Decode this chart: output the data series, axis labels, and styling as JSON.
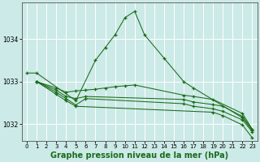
{
  "background_color": "#cceae7",
  "grid_color": "#ffffff",
  "line_color": "#1a6b1a",
  "title": "Graphe pression niveau de la mer (hPa)",
  "title_fontsize": 7,
  "title_fontweight": "bold",
  "xlim": [
    -0.5,
    23.5
  ],
  "ylim": [
    1031.6,
    1034.85
  ],
  "yticks": [
    1032,
    1033,
    1034
  ],
  "xticks": [
    0,
    1,
    2,
    3,
    4,
    5,
    6,
    7,
    8,
    9,
    10,
    11,
    12,
    13,
    14,
    15,
    16,
    17,
    18,
    19,
    20,
    21,
    22,
    23
  ],
  "series": [
    {
      "x": [
        0,
        1,
        5,
        7,
        8,
        9,
        10,
        11,
        12,
        14,
        16,
        17,
        22,
        23
      ],
      "y": [
        1033.2,
        1033.2,
        1032.55,
        1033.5,
        1033.8,
        1034.1,
        1034.5,
        1034.65,
        1034.1,
        1033.55,
        1033.0,
        1032.85,
        1032.15,
        1031.85
      ]
    },
    {
      "x": [
        1,
        3,
        4,
        5,
        6,
        7,
        8,
        9,
        10,
        11,
        16,
        17,
        19,
        22,
        23
      ],
      "y": [
        1033.0,
        1032.85,
        1032.75,
        1032.78,
        1032.8,
        1032.82,
        1032.85,
        1032.88,
        1032.9,
        1032.92,
        1032.68,
        1032.65,
        1032.58,
        1032.25,
        1031.88
      ]
    },
    {
      "x": [
        1,
        3,
        4,
        5,
        6,
        16,
        17,
        19,
        20,
        22,
        23
      ],
      "y": [
        1033.0,
        1032.8,
        1032.65,
        1032.6,
        1032.65,
        1032.58,
        1032.52,
        1032.46,
        1032.42,
        1032.18,
        1031.88
      ]
    },
    {
      "x": [
        1,
        3,
        4,
        5,
        6,
        16,
        17,
        19,
        20,
        22,
        23
      ],
      "y": [
        1033.0,
        1032.75,
        1032.6,
        1032.45,
        1032.6,
        1032.48,
        1032.42,
        1032.36,
        1032.3,
        1032.1,
        1031.82
      ]
    },
    {
      "x": [
        1,
        3,
        4,
        5,
        19,
        20,
        22,
        23
      ],
      "y": [
        1033.0,
        1032.7,
        1032.55,
        1032.42,
        1032.28,
        1032.2,
        1031.98,
        1031.68
      ]
    }
  ]
}
